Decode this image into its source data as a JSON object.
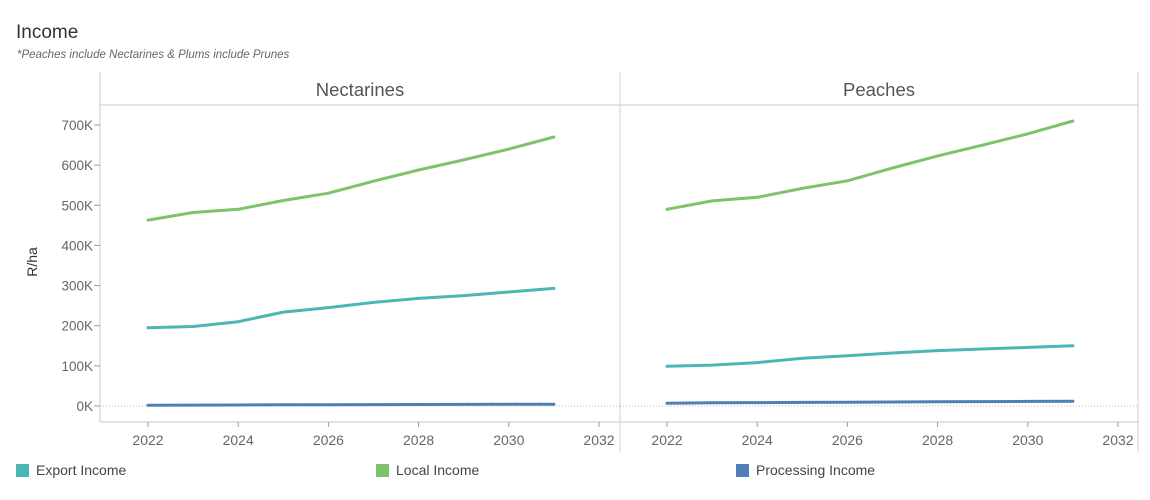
{
  "header": {
    "title": "Income",
    "subtitle": "*Peaches include Nectarines & Plums include Prunes"
  },
  "colors": {
    "export": "#4CB6B5",
    "local": "#7DC36C",
    "processing": "#4E7FB5"
  },
  "chart_data": {
    "type": "line",
    "ylabel": "R/ha",
    "ylim": [
      -35000,
      780000
    ],
    "yticks": [
      0,
      100000,
      200000,
      300000,
      400000,
      500000,
      600000,
      700000
    ],
    "ytick_labels": [
      "0K",
      "100K",
      "200K",
      "300K",
      "400K",
      "500K",
      "600K",
      "700K"
    ],
    "xlim": [
      2020.5,
      2032.2
    ],
    "xticks": [
      2022,
      2024,
      2026,
      2028,
      2030,
      2032
    ],
    "xtick_labels": [
      "2022",
      "2024",
      "2026",
      "2028",
      "2030",
      "2032"
    ],
    "x": [
      2022,
      2023,
      2024,
      2025,
      2026,
      2027,
      2028,
      2029,
      2030,
      2031
    ],
    "grid": false,
    "legend_placement": "bottom",
    "panels": [
      {
        "title": "Nectarines",
        "series": [
          {
            "name": "Local Income",
            "color_key": "local",
            "values": [
              463000,
              482000,
              490000,
              512000,
              530000,
              560000,
              588000,
              613000,
              640000,
              670000
            ]
          },
          {
            "name": "Export Income",
            "color_key": "export",
            "values": [
              195000,
              198000,
              210000,
              234000,
              245000,
              258000,
              268000,
              275000,
              284000,
              293000
            ]
          },
          {
            "name": "Processing Income",
            "color_key": "processing",
            "values": [
              2000,
              2200,
              2500,
              3000,
              3200,
              3500,
              3800,
              4000,
              4300,
              4600
            ]
          }
        ]
      },
      {
        "title": "Peaches",
        "series": [
          {
            "name": "Local Income",
            "color_key": "local",
            "values": [
              490000,
              511000,
              520000,
              542000,
              561000,
              593000,
              623000,
              650000,
              678000,
              710000
            ]
          },
          {
            "name": "Export Income",
            "color_key": "export",
            "values": [
              99000,
              102000,
              108000,
              119000,
              125000,
              132000,
              138000,
              142000,
              146000,
              150000
            ]
          },
          {
            "name": "Processing Income",
            "color_key": "processing",
            "values": [
              7000,
              8000,
              8500,
              9000,
              9500,
              10000,
              10500,
              11000,
              11500,
              12000
            ]
          }
        ]
      }
    ]
  },
  "legend": [
    {
      "label": "Export Income",
      "color_key": "export"
    },
    {
      "label": "Local Income",
      "color_key": "local"
    },
    {
      "label": "Processing Income",
      "color_key": "processing"
    }
  ]
}
